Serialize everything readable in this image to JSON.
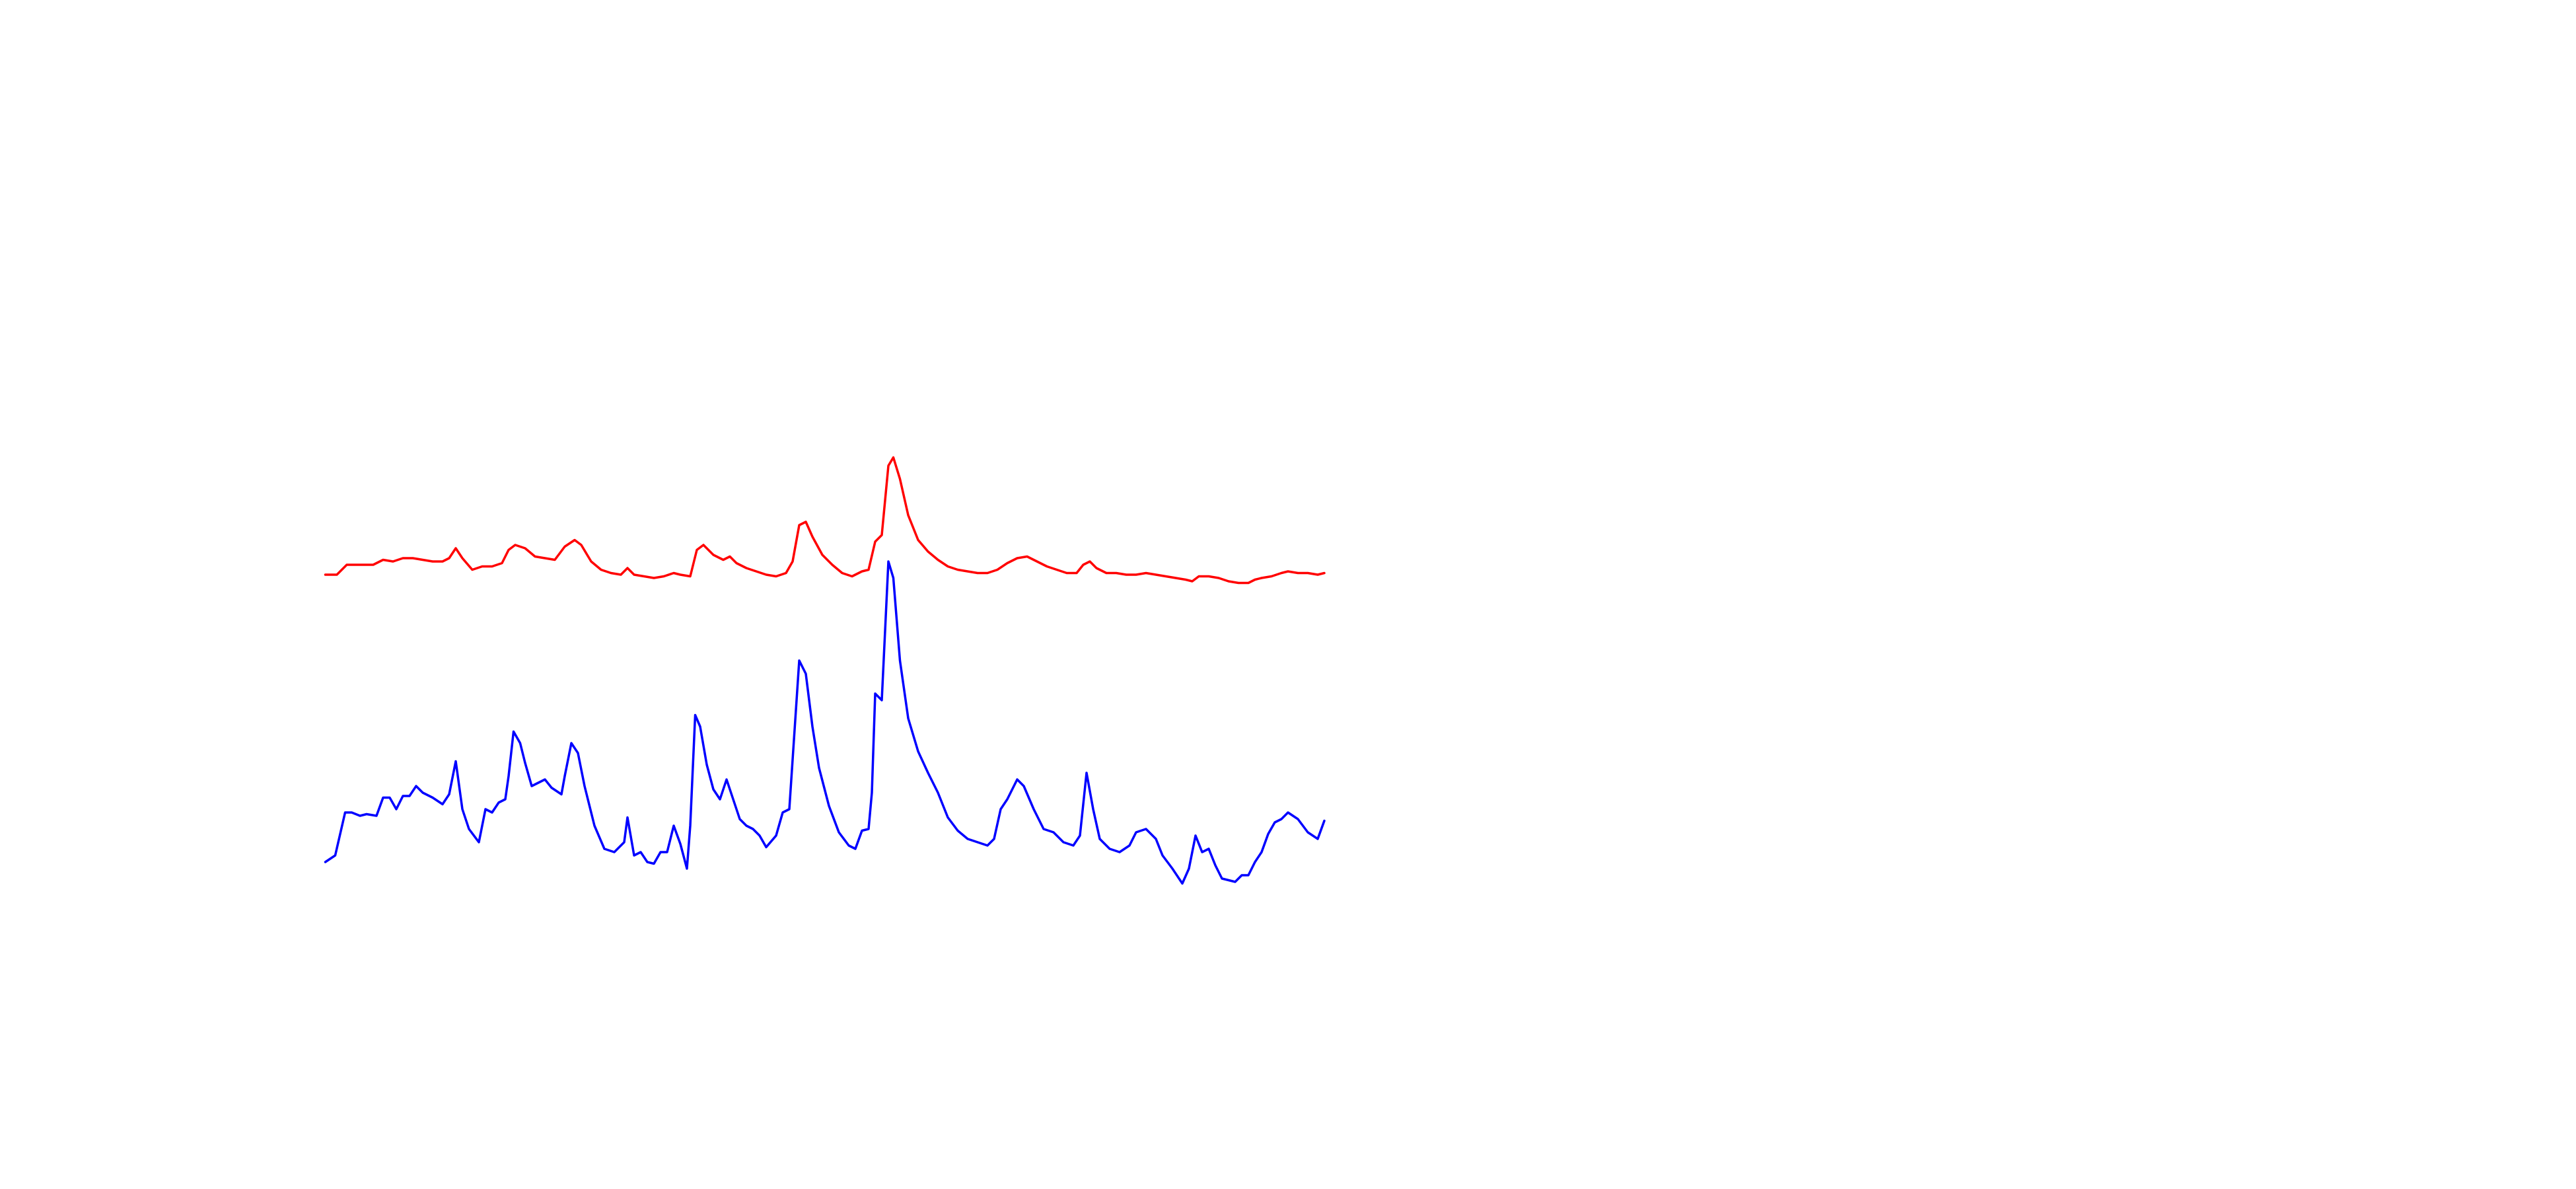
{
  "chart_data": {
    "type": "line",
    "xlim": [
      0,
      605
    ],
    "ylim": [
      0,
      720
    ],
    "series": [
      {
        "color": "#ff0000",
        "x": [
          0,
          7,
          13,
          21,
          29,
          35,
          41,
          47,
          53,
          59,
          65,
          71,
          75,
          79,
          83,
          89,
          95,
          101,
          107,
          111,
          115,
          121,
          127,
          133,
          139,
          145,
          151,
          155,
          161,
          167,
          173,
          179,
          183,
          187,
          193,
          199,
          205,
          211,
          215,
          221,
          225,
          229,
          235,
          241,
          245,
          249,
          255,
          261,
          267,
          273,
          279,
          283,
          287,
          291,
          295,
          301,
          307,
          313,
          319,
          325,
          329,
          333,
          337,
          341,
          344,
          348,
          353,
          359,
          365,
          371,
          377,
          383,
          389,
          395,
          401,
          407,
          413,
          419,
          425,
          431,
          437,
          443,
          449,
          455,
          459,
          463,
          467,
          473,
          479,
          485,
          491,
          497,
          503,
          509,
          515,
          521,
          525,
          529,
          535,
          541,
          547,
          553,
          559,
          563,
          567,
          573,
          579,
          583,
          589,
          595,
          601,
          605
        ],
        "values": [
          372,
          372,
          378,
          378,
          378,
          381,
          380,
          382,
          382,
          381,
          380,
          380,
          382,
          388,
          382,
          375,
          377,
          377,
          379,
          387,
          390,
          388,
          383,
          382,
          381,
          389,
          393,
          390,
          380,
          375,
          373,
          372,
          376,
          372,
          371,
          370,
          371,
          373,
          372,
          371,
          387,
          390,
          384,
          381,
          383,
          379,
          376,
          374,
          372,
          371,
          373,
          380,
          402,
          404,
          395,
          384,
          378,
          373,
          371,
          374,
          375,
          392,
          396,
          438,
          443,
          430,
          408,
          393,
          386,
          381,
          377,
          375,
          374,
          373,
          373,
          375,
          379,
          382,
          383,
          380,
          377,
          375,
          373,
          373,
          378,
          380,
          376,
          373,
          373,
          372,
          372,
          373,
          372,
          371,
          370,
          369,
          368,
          371,
          371,
          370,
          368,
          367,
          367,
          369,
          370,
          371,
          373,
          374,
          373,
          373,
          372,
          373
        ]
      },
      {
        "color": "#0000ff",
        "x": [
          0,
          6,
          9,
          12,
          16,
          21,
          25,
          31,
          35,
          39,
          43,
          47,
          51,
          55,
          59,
          65,
          71,
          75,
          79,
          83,
          87,
          93,
          97,
          101,
          105,
          109,
          111,
          114,
          118,
          121,
          125,
          129,
          133,
          137,
          143,
          145,
          149,
          153,
          157,
          163,
          169,
          175,
          181,
          183,
          187,
          191,
          195,
          199,
          203,
          207,
          211,
          215,
          219,
          221,
          224,
          227,
          231,
          235,
          239,
          243,
          247,
          251,
          255,
          259,
          263,
          267,
          273,
          277,
          281,
          283,
          287,
          291,
          295,
          299,
          305,
          311,
          317,
          321,
          325,
          329,
          331,
          333,
          337,
          341,
          344,
          348,
          353,
          359,
          365,
          371,
          377,
          383,
          389,
          395,
          401,
          405,
          409,
          413,
          419,
          423,
          429,
          435,
          441,
          447,
          453,
          457,
          461,
          465,
          469,
          475,
          481,
          487,
          491,
          497,
          503,
          507,
          513,
          519,
          523,
          527,
          531,
          535,
          539,
          543,
          547,
          551,
          555,
          559,
          563,
          567,
          571,
          575,
          579,
          583,
          589,
          595,
          601,
          605
        ],
        "values": [
          198,
          202,
          215,
          228,
          228,
          226,
          227,
          226,
          237,
          237,
          230,
          238,
          238,
          244,
          240,
          237,
          233,
          239,
          259,
          230,
          218,
          210,
          230,
          228,
          234,
          236,
          250,
          277,
          270,
          258,
          244,
          246,
          248,
          243,
          239,
          250,
          270,
          264,
          244,
          220,
          206,
          204,
          210,
          225,
          202,
          204,
          198,
          197,
          204,
          204,
          220,
          209,
          194,
          220,
          287,
          280,
          257,
          242,
          236,
          248,
          236,
          224,
          220,
          218,
          214,
          207,
          214,
          228,
          230,
          260,
          320,
          312,
          280,
          255,
          232,
          216,
          208,
          206,
          217,
          218,
          240,
          300,
          296,
          380,
          370,
          320,
          285,
          265,
          252,
          240,
          225,
          217,
          212,
          210,
          208,
          212,
          230,
          236,
          248,
          244,
          230,
          218,
          216,
          210,
          208,
          214,
          252,
          230,
          212,
          206,
          204,
          208,
          216,
          218,
          212,
          202,
          194,
          185,
          194,
          214,
          204,
          206,
          196,
          188,
          187,
          186,
          190,
          190,
          198,
          204,
          215,
          222,
          224,
          228,
          224,
          216,
          212,
          223
        ]
      }
    ]
  }
}
